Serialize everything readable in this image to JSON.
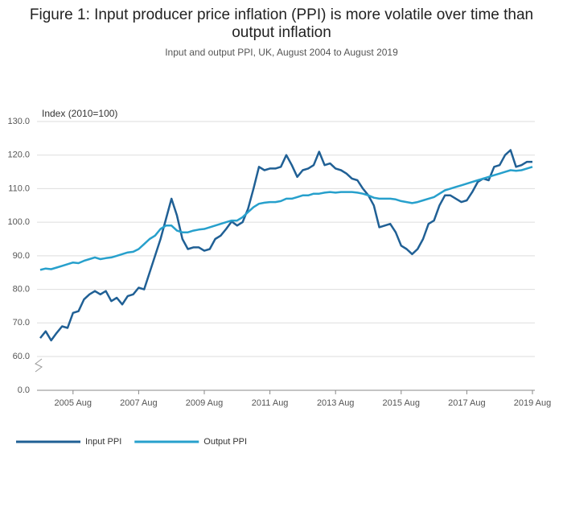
{
  "chart_data": {
    "type": "line",
    "title": "Figure 1: Input producer price inflation (PPI) is more volatile over time than output inflation",
    "subtitle": "Input and output PPI, UK, August 2004 to August 2019",
    "y_label": "Index (2010=100)",
    "categories": [
      null,
      null,
      null,
      null,
      null,
      null,
      "2005 Aug",
      null,
      null,
      null,
      null,
      null,
      null,
      null,
      null,
      null,
      null,
      null,
      "2007 Aug",
      null,
      null,
      null,
      null,
      null,
      null,
      null,
      null,
      null,
      null,
      null,
      "2009 Aug",
      null,
      null,
      null,
      null,
      null,
      null,
      null,
      null,
      null,
      null,
      null,
      "2011 Aug",
      null,
      null,
      null,
      null,
      null,
      null,
      null,
      null,
      null,
      null,
      null,
      "2013 Aug",
      null,
      null,
      null,
      null,
      null,
      null,
      null,
      null,
      null,
      null,
      null,
      "2015 Aug",
      null,
      null,
      null,
      null,
      null,
      null,
      null,
      null,
      null,
      null,
      null,
      "2017 Aug",
      null,
      null,
      null,
      null,
      null,
      null,
      null,
      null,
      null,
      null,
      null,
      "2019 Aug"
    ],
    "series": [
      {
        "name": "Input PPI",
        "color": "#206095",
        "values": [
          65.5,
          67.5,
          64.8,
          67,
          69,
          68.5,
          73,
          73.5,
          77,
          78.5,
          79.5,
          78.5,
          79.5,
          76.5,
          77.5,
          75.5,
          78,
          78.5,
          80.5,
          80,
          85,
          90,
          95,
          101,
          107,
          102,
          95,
          92,
          92.5,
          92.5,
          91.5,
          92,
          95,
          96,
          98,
          100.2,
          99,
          100,
          104,
          110,
          116.5,
          115.5,
          116,
          116,
          116.5,
          120,
          117,
          113.5,
          115.5,
          116,
          117,
          121,
          117,
          117.5,
          116,
          115.5,
          114.5,
          113,
          112.5,
          110,
          108,
          105,
          98.5,
          99,
          99.5,
          97,
          93,
          92,
          90.5,
          92,
          95,
          99.5,
          100.5,
          105,
          108,
          108,
          107,
          106,
          106.5,
          109,
          112,
          113,
          112.5,
          116.5,
          117,
          120,
          121.5,
          116.5,
          117,
          118,
          118
        ]
      },
      {
        "name": "Output PPI",
        "color": "#27a0cc",
        "values": [
          85.8,
          86.2,
          86,
          86.5,
          87,
          87.5,
          88,
          87.8,
          88.5,
          89,
          89.5,
          89,
          89.3,
          89.5,
          90,
          90.5,
          91,
          91.2,
          92,
          93.5,
          95,
          96,
          98,
          99,
          99,
          97.5,
          97,
          97,
          97.5,
          97.8,
          98,
          98.5,
          99,
          99.5,
          100,
          100.5,
          100.5,
          101.5,
          103,
          104.5,
          105.5,
          105.8,
          106,
          106,
          106.3,
          107,
          107,
          107.5,
          108,
          108,
          108.5,
          108.5,
          108.8,
          109,
          108.8,
          109,
          109,
          109,
          108.8,
          108.5,
          108,
          107.3,
          107,
          107,
          107,
          106.8,
          106.3,
          106,
          105.7,
          106,
          106.5,
          107,
          107.5,
          108.5,
          109.5,
          110,
          110.5,
          111,
          111.5,
          112,
          112.5,
          113,
          113.5,
          114,
          114.5,
          115,
          115.5,
          115.3,
          115.5,
          116,
          116.5
        ]
      }
    ],
    "ylim": [
      0,
      130
    ],
    "axis_break": [
      0,
      60
    ],
    "yticks": [
      {
        "value": 0,
        "label": "0.0"
      },
      {
        "value": 60,
        "label": "60.0"
      },
      {
        "value": 70,
        "label": "70.0"
      },
      {
        "value": 80,
        "label": "80.0"
      },
      {
        "value": 90,
        "label": "90.0"
      },
      {
        "value": 100,
        "label": "100.0"
      },
      {
        "value": 110,
        "label": "110.0"
      },
      {
        "value": 120,
        "label": "120.0"
      },
      {
        "value": 130,
        "label": "130.0"
      }
    ],
    "grid": true,
    "legend": "bottom-left"
  }
}
